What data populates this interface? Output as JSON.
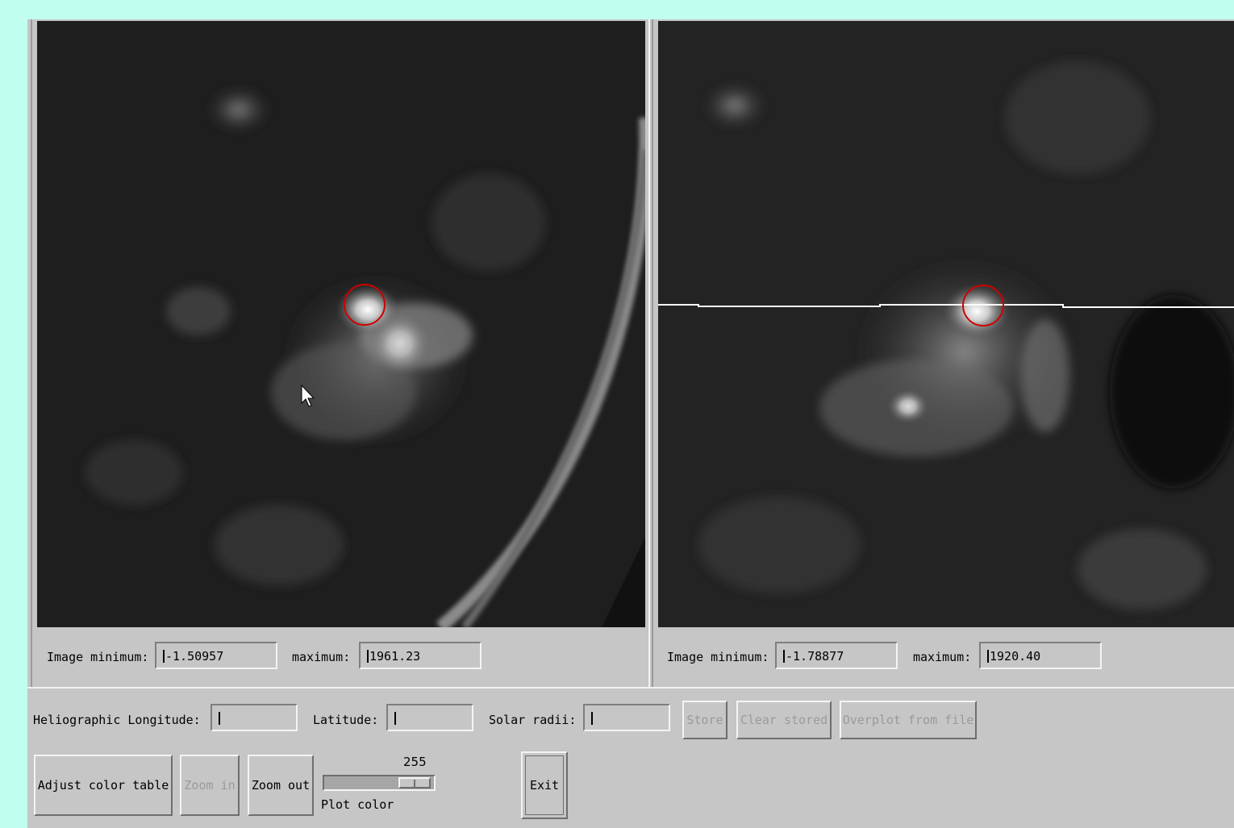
{
  "left_panel": {
    "min_label": "Image minimum:",
    "min_value": "-1.50957",
    "max_label": "maximum:",
    "max_value": "1961.23"
  },
  "right_panel": {
    "min_label": "Image minimum:",
    "min_value": "-1.78877",
    "max_label": "maximum:",
    "max_value": "1920.40"
  },
  "coords": {
    "longitude_label": "Heliographic Longitude:",
    "longitude_value": "",
    "latitude_label": "Latitude:",
    "latitude_value": "",
    "radii_label": "Solar radii:",
    "radii_value": ""
  },
  "buttons": {
    "store": "Store",
    "clear_stored": "Clear stored",
    "overplot": "Overplot from file",
    "adjust_color": "Adjust color table",
    "zoom_in": "Zoom in",
    "zoom_out": "Zoom out",
    "exit": "Exit"
  },
  "plot_color": {
    "label": "Plot color",
    "value": "255",
    "max": 255
  },
  "colors": {
    "background": "#c0fff0",
    "panel": "#c6c6c6",
    "marker": "#d00000"
  }
}
